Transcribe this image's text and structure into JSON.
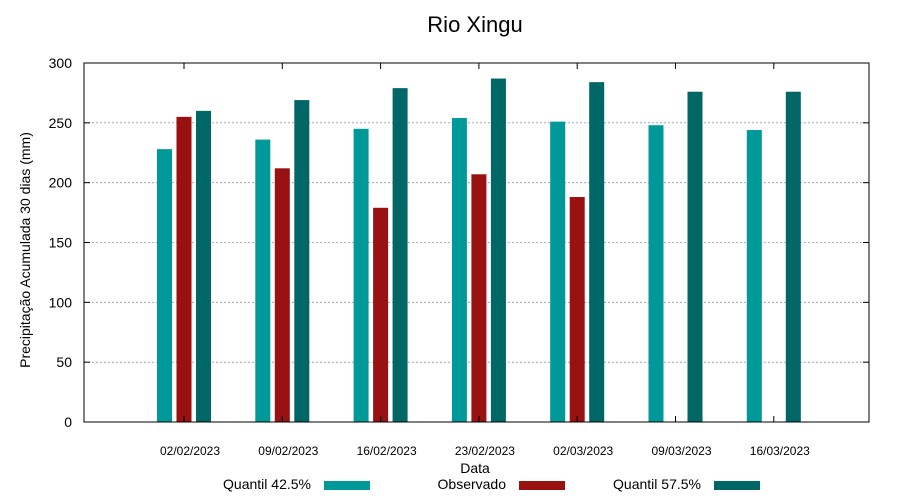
{
  "chart_data": {
    "type": "bar",
    "title": "Rio Xingu",
    "xlabel": "Data",
    "ylabel": "Precipitação Acumulada 30 dias (mm)",
    "ylim": [
      0,
      300
    ],
    "yticks": [
      0,
      50,
      100,
      150,
      200,
      250,
      300
    ],
    "grid": true,
    "legend_position": "bottom",
    "categories": [
      "02/02/2023",
      "09/02/2023",
      "16/02/2023",
      "23/02/2023",
      "02/03/2023",
      "09/03/2023",
      "16/03/2023"
    ],
    "series": [
      {
        "name": "Quantil 42.5%",
        "color": "#009999",
        "values": [
          228,
          236,
          245,
          254,
          251,
          248,
          244
        ]
      },
      {
        "name": "Observado",
        "color": "#991111",
        "values": [
          255,
          212,
          179,
          207,
          188,
          null,
          null
        ]
      },
      {
        "name": "Quantil 57.5%",
        "color": "#006666",
        "values": [
          260,
          269,
          279,
          287,
          284,
          276,
          276
        ]
      }
    ]
  }
}
